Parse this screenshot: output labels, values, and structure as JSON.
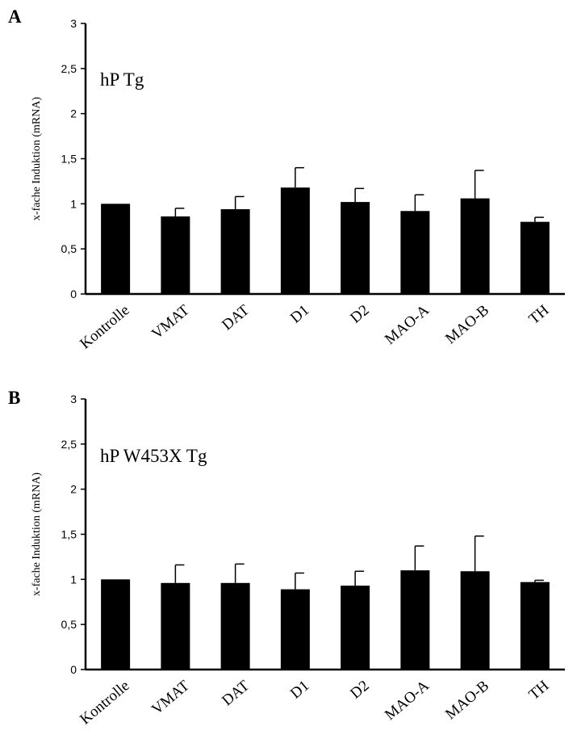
{
  "chart_data": [
    {
      "type": "bar",
      "panel_label": "A",
      "title": "hP Tg",
      "ylabel": "x-fache Induktion  (mRNA)",
      "xlabel": "",
      "ylim": [
        0,
        3
      ],
      "yticks": [
        "0",
        "0,5",
        "1",
        "1,5",
        "2",
        "2,5",
        "3"
      ],
      "categories": [
        "Kontrolle",
        "VMAT",
        "DAT",
        "D1",
        "D2",
        "MAO-A",
        "MAO-B",
        "TH"
      ],
      "values": [
        1.0,
        0.86,
        0.94,
        1.18,
        1.02,
        0.92,
        1.06,
        0.8
      ],
      "errors": [
        0.0,
        0.09,
        0.14,
        0.22,
        0.15,
        0.18,
        0.31,
        0.05
      ],
      "bar_color": "#000000",
      "grid": false
    },
    {
      "type": "bar",
      "panel_label": "B",
      "title": "hP W453X Tg",
      "ylabel": "x-fache Induktion  (mRNA)",
      "xlabel": "",
      "ylim": [
        0,
        3
      ],
      "yticks": [
        "0",
        "0,5",
        "1",
        "1,5",
        "2",
        "2,5",
        "3"
      ],
      "categories": [
        "Kontrolle",
        "VMAT",
        "DAT",
        "D1",
        "D2",
        "MAO-A",
        "MAO-B",
        "TH"
      ],
      "values": [
        1.0,
        0.96,
        0.96,
        0.89,
        0.93,
        1.1,
        1.09,
        0.97
      ],
      "errors": [
        0.0,
        0.2,
        0.21,
        0.18,
        0.16,
        0.27,
        0.39,
        0.02
      ],
      "bar_color": "#000000",
      "grid": false
    }
  ]
}
